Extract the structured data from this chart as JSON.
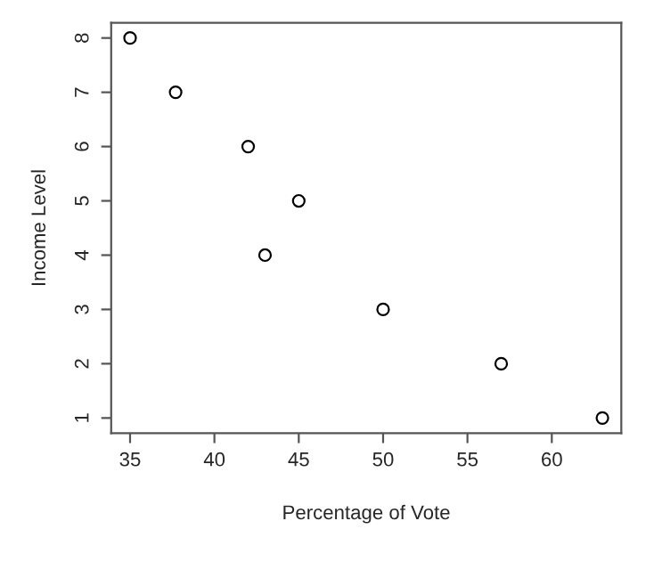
{
  "chart_data": {
    "type": "scatter",
    "xlabel": "Percentage of Vote",
    "ylabel": "Income Level",
    "x": [
      35,
      37.7,
      42,
      45,
      43,
      50,
      57,
      63
    ],
    "values": [
      8,
      7,
      6,
      5,
      4,
      3,
      2,
      1
    ],
    "color": "#000000",
    "marker": "circle",
    "xlim": [
      33.88,
      64.12
    ],
    "ylim": [
      0.72,
      8.28
    ],
    "xticks": [
      35,
      40,
      45,
      50,
      55,
      60
    ],
    "yticks": [
      1,
      2,
      3,
      4,
      5,
      6,
      7,
      8
    ],
    "grid": false
  }
}
